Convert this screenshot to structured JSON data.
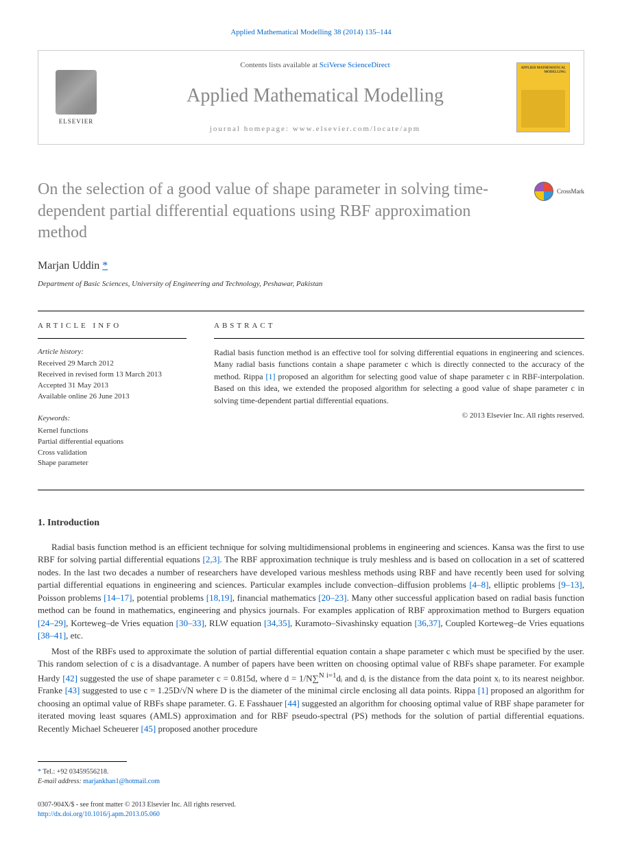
{
  "citation": {
    "prefix": "",
    "journal_link": "Applied Mathematical Modelling 38 (2014) 135–144",
    "suffix": ""
  },
  "banner": {
    "elsevier": "ELSEVIER",
    "contents_prefix": "Contents lists available at ",
    "contents_link": "SciVerse ScienceDirect",
    "journal_name": "Applied Mathematical Modelling",
    "homepage_prefix": "journal homepage: ",
    "homepage_link": "www.elsevier.com/locate/apm",
    "cover_title": "APPLIED MATHEMATICAL MODELLING"
  },
  "title": "On the selection of a good value of shape parameter in solving time-dependent partial differential equations using RBF approximation method",
  "crossmark": "CrossMark",
  "author": "Marjan Uddin",
  "author_mark": "*",
  "affiliation": "Department of Basic Sciences, University of Engineering and Technology, Peshawar, Pakistan",
  "info": {
    "heading": "ARTICLE INFO",
    "history_label": "Article history:",
    "history": [
      "Received 29 March 2012",
      "Received in revised form 13 March 2013",
      "Accepted 31 May 2013",
      "Available online 26 June 2013"
    ],
    "keywords_label": "Keywords:",
    "keywords": [
      "Kernel functions",
      "Partial differential equations",
      "Cross validation",
      "Shape parameter"
    ]
  },
  "abstract": {
    "heading": "ABSTRACT",
    "text_before_ref": "Radial basis function method is an effective tool for solving differential equations in engineering and sciences. Many radial basis functions contain a shape parameter c which is directly connected to the accuracy of the method. Rippa ",
    "ref1": "[1]",
    "text_after_ref": " proposed an algorithm for selecting good value of shape parameter c in RBF-interpolation. Based on this idea, we extended the proposed algorithm for selecting a good value of shape parameter c in solving time-dependent partial differential equations.",
    "copyright": "© 2013 Elsevier Inc. All rights reserved."
  },
  "section1": {
    "heading": "1. Introduction",
    "p1_parts": [
      "Radial basis function method is an efficient technique for solving multidimensional problems in engineering and sciences. Kansa was the first to use RBF for solving partial differential equations ",
      "[2,3]",
      ". The RBF approximation technique is truly meshless and is based on collocation in a set of scattered nodes. In the last two decades a number of researchers have developed various meshless methods using RBF and have recently been used for solving partial differential equations in engineering and sciences. Particular examples include convection–diffusion problems ",
      "[4–8]",
      ", elliptic problems ",
      "[9–13]",
      ", Poisson problems ",
      "[14–17]",
      ", potential problems ",
      "[18,19]",
      ", financial mathematics ",
      "[20–23]",
      ". Many other successful application based on radial basis function method can be found in mathematics, engineering and physics journals. For examples application of RBF approximation method to Burgers equation ",
      "[24–29]",
      ", Korteweg–de Vries equation ",
      "[30–33]",
      ", RLW equation ",
      "[34,35]",
      ", Kuramoto–Sivashinsky equation ",
      "[36,37]",
      ", Coupled Korteweg–de Vries equations ",
      "[38–41]",
      ", etc."
    ],
    "p2_parts": [
      "Most of the RBFs used to approximate the solution of partial differential equation contain a shape parameter c which must be specified by the user. This random selection of c is a disadvantage. A number of papers have been written on choosing optimal value of RBFs shape parameter. For example Hardy ",
      "[42]",
      " suggested the use of shape parameter c = 0.815d, where d = 1/N∑",
      "N i=1",
      "dᵢ and dᵢ is the distance from the data point xᵢ to its nearest neighbor. Franke ",
      "[43]",
      " suggested to use c = 1.25D/√N where D is the diameter of the minimal circle enclosing all data points. Rippa ",
      "[1]",
      " proposed an algorithm for choosing an optimal value of RBFs shape parameter. G. E Fasshauer ",
      "[44]",
      " suggested an algorithm for choosing optimal value of RBF shape parameter for iterated moving least squares (AMLS) approximation and for RBF pseudo-spectral (PS) methods for the solution of partial differential equations. Recently Michael Scheuerer ",
      "[45]",
      " proposed another procedure"
    ]
  },
  "footnote": {
    "star": "*",
    "tel": " Tel.: +92 03459556218.",
    "email_label": "E-mail address: ",
    "email": "marjankhan1@hotmail.com"
  },
  "footer": {
    "line1": "0307-904X/$ - see front matter © 2013 Elsevier Inc. All rights reserved.",
    "doi": "http://dx.doi.org/10.1016/j.apm.2013.05.060"
  },
  "colors": {
    "link": "#0066cc",
    "muted": "#888888",
    "text": "#333333",
    "cover_bg": "#f4c430"
  }
}
